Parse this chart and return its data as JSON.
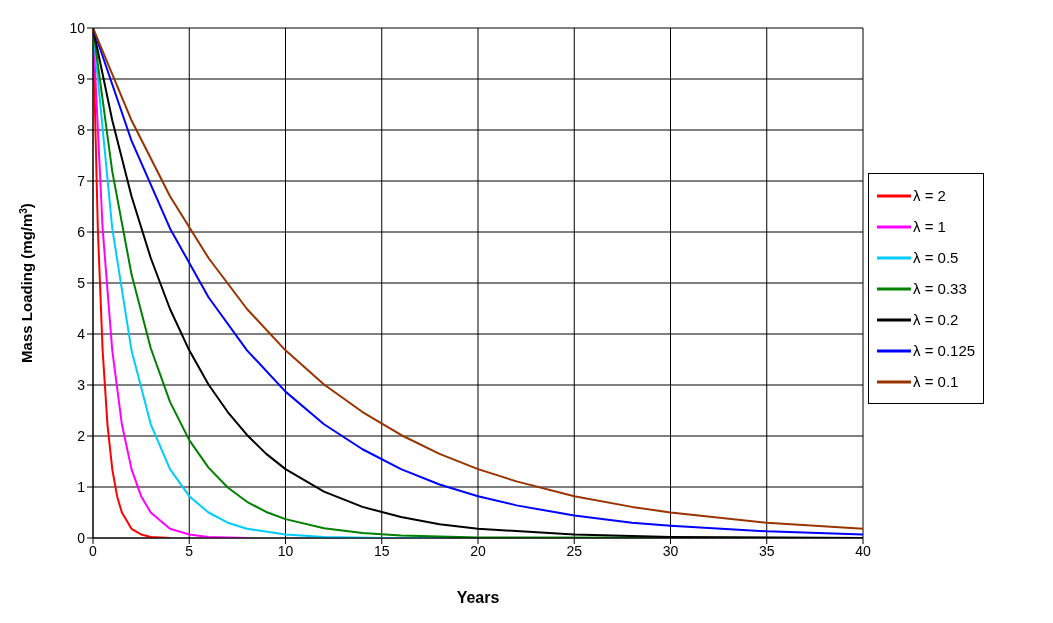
{
  "chart_data": {
    "type": "line",
    "xlabel": "Years",
    "ylabel": "Mass Loading (mg/m$^{3}$)",
    "xlim": [
      0,
      40
    ],
    "xticks": [
      0,
      5,
      10,
      15,
      20,
      25,
      30,
      35,
      40
    ],
    "ylim": [
      0,
      10
    ],
    "yticks": [
      0,
      1,
      2,
      3,
      4,
      5,
      6,
      7,
      8,
      9,
      10
    ],
    "grid": true,
    "legend": "right",
    "marker": "none",
    "line_style": "solid",
    "series": [
      {
        "name": "λ = 2",
        "color": "#ff0000",
        "x": [
          0,
          0.25,
          0.5,
          0.75,
          1,
          1.25,
          1.5,
          2,
          2.5,
          3,
          4
        ],
        "values": [
          10,
          6.07,
          3.68,
          2.23,
          1.35,
          0.82,
          0.5,
          0.18,
          0.07,
          0.02,
          0
        ]
      },
      {
        "name": "λ = 1",
        "color": "#ff00ff",
        "x": [
          0,
          0.5,
          1,
          1.5,
          2,
          2.5,
          3,
          4,
          5,
          6,
          8
        ],
        "values": [
          10,
          6.07,
          3.68,
          2.23,
          1.35,
          0.82,
          0.5,
          0.18,
          0.07,
          0.02,
          0
        ]
      },
      {
        "name": "λ = 0.5",
        "color": "#00ccff",
        "x": [
          0,
          1,
          2,
          3,
          4,
          5,
          6,
          7,
          8,
          10,
          12,
          15,
          40
        ],
        "values": [
          10,
          6.07,
          3.68,
          2.23,
          1.35,
          0.82,
          0.5,
          0.3,
          0.18,
          0.07,
          0.02,
          0,
          0
        ]
      },
      {
        "name": "λ = 0.33",
        "color": "#008000",
        "x": [
          0,
          1,
          2,
          3,
          4,
          5,
          6,
          7,
          8,
          9,
          10,
          12,
          14,
          16,
          20,
          40
        ],
        "values": [
          10,
          7.19,
          5.17,
          3.72,
          2.67,
          1.92,
          1.38,
          0.99,
          0.71,
          0.51,
          0.37,
          0.19,
          0.1,
          0.05,
          0.01,
          0
        ]
      },
      {
        "name": "λ = 0.2",
        "color": "#000000",
        "x": [
          0,
          1,
          2,
          3,
          4,
          5,
          6,
          7,
          8,
          9,
          10,
          12,
          14,
          16,
          18,
          20,
          25,
          30,
          40
        ],
        "values": [
          10,
          8.19,
          6.7,
          5.49,
          4.49,
          3.68,
          3.01,
          2.47,
          2.02,
          1.65,
          1.35,
          0.91,
          0.61,
          0.41,
          0.27,
          0.18,
          0.07,
          0.02,
          0
        ]
      },
      {
        "name": "λ = 0.125",
        "color": "#0000ff",
        "x": [
          0,
          2,
          4,
          6,
          8,
          10,
          12,
          14,
          16,
          18,
          20,
          22,
          25,
          28,
          30,
          35,
          40
        ],
        "values": [
          10,
          7.79,
          6.07,
          4.72,
          3.68,
          2.87,
          2.23,
          1.74,
          1.35,
          1.05,
          0.82,
          0.64,
          0.44,
          0.3,
          0.24,
          0.13,
          0.07
        ]
      },
      {
        "name": "λ = 0.1",
        "color": "#993300",
        "x": [
          0,
          2,
          4,
          6,
          8,
          10,
          12,
          14,
          16,
          18,
          20,
          22,
          25,
          28,
          30,
          35,
          40
        ],
        "values": [
          10,
          8.19,
          6.7,
          5.49,
          4.49,
          3.68,
          3.01,
          2.47,
          2.02,
          1.65,
          1.35,
          1.11,
          0.82,
          0.61,
          0.5,
          0.3,
          0.18
        ]
      }
    ]
  }
}
